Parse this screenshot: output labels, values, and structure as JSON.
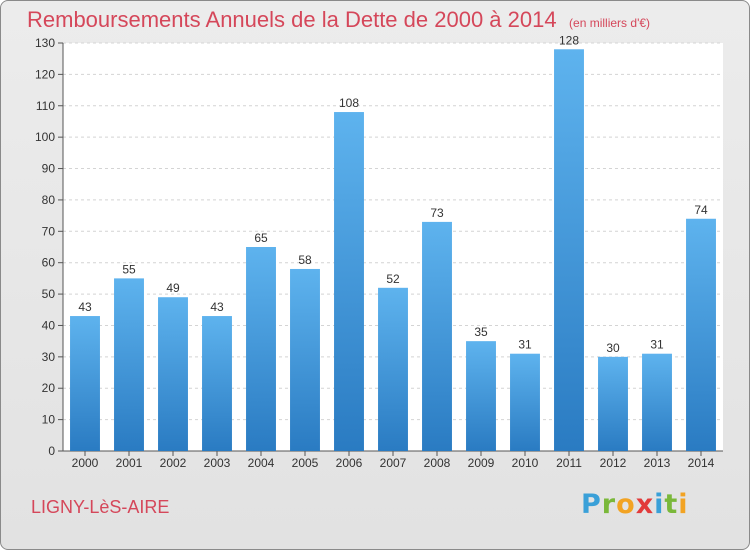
{
  "title": "Remboursements Annuels de la Dette de 2000 à 2014",
  "subtitle": "(en milliers d'€)",
  "commune": "LIGNY-LèS-AIRE",
  "logo": {
    "letters": [
      {
        "char": "P",
        "color": "#3aa0d8"
      },
      {
        "char": "r",
        "color": "#7ab83a"
      },
      {
        "char": "o",
        "color": "#f2a323"
      },
      {
        "char": "x",
        "color": "#e23b3b"
      },
      {
        "char": "i",
        "color": "#3aa0d8"
      },
      {
        "char": "t",
        "color": "#7ab83a"
      },
      {
        "char": "i",
        "color": "#f2a323"
      }
    ]
  },
  "colors": {
    "title": "#d5475a",
    "bar_top": "#5eb3ee",
    "bar_bottom": "#2a7bc2",
    "grid": "#d4d4d4",
    "plot_bg": "#ffffff"
  },
  "chart_data": {
    "type": "bar",
    "categories": [
      "2000",
      "2001",
      "2002",
      "2003",
      "2004",
      "2005",
      "2006",
      "2007",
      "2008",
      "2009",
      "2010",
      "2011",
      "2012",
      "2013",
      "2014"
    ],
    "values": [
      43,
      55,
      49,
      43,
      65,
      58,
      108,
      52,
      73,
      35,
      31,
      128,
      30,
      31,
      74
    ],
    "ylim": [
      0,
      130
    ],
    "yticks": [
      0,
      10,
      20,
      30,
      40,
      50,
      60,
      70,
      80,
      90,
      100,
      110,
      120,
      130
    ],
    "grid": true
  }
}
